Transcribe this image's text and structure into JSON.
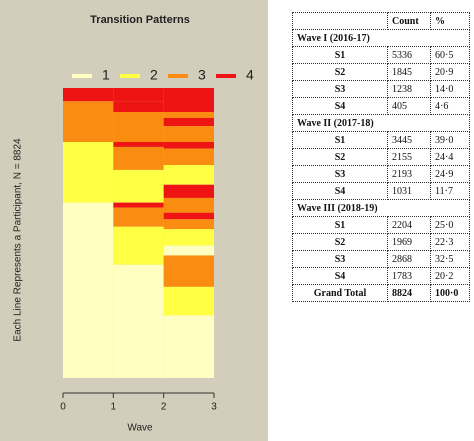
{
  "chart_data": {
    "type": "transition",
    "title": "Transition Patterns",
    "x_label": "Wave",
    "y_label": "Each Line Represents a Participant, N = 8824",
    "xlim": [
      0,
      3
    ],
    "xticks": [
      0,
      1,
      2,
      3
    ],
    "ylim": [
      0,
      8824
    ],
    "series": [
      {
        "name": "1",
        "color": "#ffffc2"
      },
      {
        "name": "2",
        "color": "#ffff44"
      },
      {
        "name": "3",
        "color": "#fb8c12"
      },
      {
        "name": "4",
        "color": "#ee1414"
      }
    ],
    "columns": [
      {
        "x": [
          0,
          1
        ],
        "segments": [
          {
            "state": "4",
            "value": 405
          },
          {
            "state": "3",
            "value": 1238
          },
          {
            "state": "2",
            "value": 1845
          },
          {
            "state": "1",
            "value": 5336
          }
        ]
      },
      {
        "x": [
          1,
          2
        ],
        "segments": [
          {
            "state": "4",
            "value": 405
          },
          {
            "state": "4",
            "value": 326
          },
          {
            "state": "3",
            "value": 912
          },
          {
            "state": "4",
            "value": 150
          },
          {
            "state": "3",
            "value": 700
          },
          {
            "state": "2",
            "value": 995
          },
          {
            "state": "4",
            "value": 150
          },
          {
            "state": "3",
            "value": 581
          },
          {
            "state": "2",
            "value": 1160
          },
          {
            "state": "1",
            "value": 3445
          }
        ]
      },
      {
        "x": [
          2,
          3
        ],
        "segments": [
          {
            "state": "4",
            "value": 731
          },
          {
            "state": "3",
            "value": 180
          },
          {
            "state": "4",
            "value": 250
          },
          {
            "state": "3",
            "value": 482
          },
          {
            "state": "4",
            "value": 200
          },
          {
            "state": "3",
            "value": 500
          },
          {
            "state": "2",
            "value": 600
          },
          {
            "state": "4",
            "value": 402
          },
          {
            "state": "3",
            "value": 450
          },
          {
            "state": "4",
            "value": 200
          },
          {
            "state": "3",
            "value": 300
          },
          {
            "state": "2",
            "value": 500
          },
          {
            "state": "1",
            "value": 300
          },
          {
            "state": "3",
            "value": 956
          },
          {
            "state": "2",
            "value": 869
          },
          {
            "state": "1",
            "value": 1904
          }
        ]
      }
    ]
  },
  "table": {
    "header": [
      "Count",
      "%"
    ],
    "rows": [
      [
        "Wave I (2016-17)"
      ],
      [
        "S1",
        5336,
        "60·5"
      ],
      [
        "S2",
        1845,
        "20·9"
      ],
      [
        "S3",
        1238,
        "14·0"
      ],
      [
        "S4",
        405,
        "4·6"
      ],
      [
        "Wave II (2017-18)"
      ],
      [
        "S1",
        3445,
        "39·0"
      ],
      [
        "S2",
        2155,
        "24·4"
      ],
      [
        "S3",
        2193,
        "24·9"
      ],
      [
        "S4",
        1031,
        "11·7"
      ],
      [
        "Wave III (2018-19)"
      ],
      [
        "S1",
        2204,
        "25·0"
      ],
      [
        "S2",
        1969,
        "22·3"
      ],
      [
        "S3",
        2868,
        "32·5"
      ],
      [
        "S4",
        1783,
        "20·2"
      ],
      [
        "Grand Total",
        8824,
        "100·0"
      ]
    ]
  }
}
